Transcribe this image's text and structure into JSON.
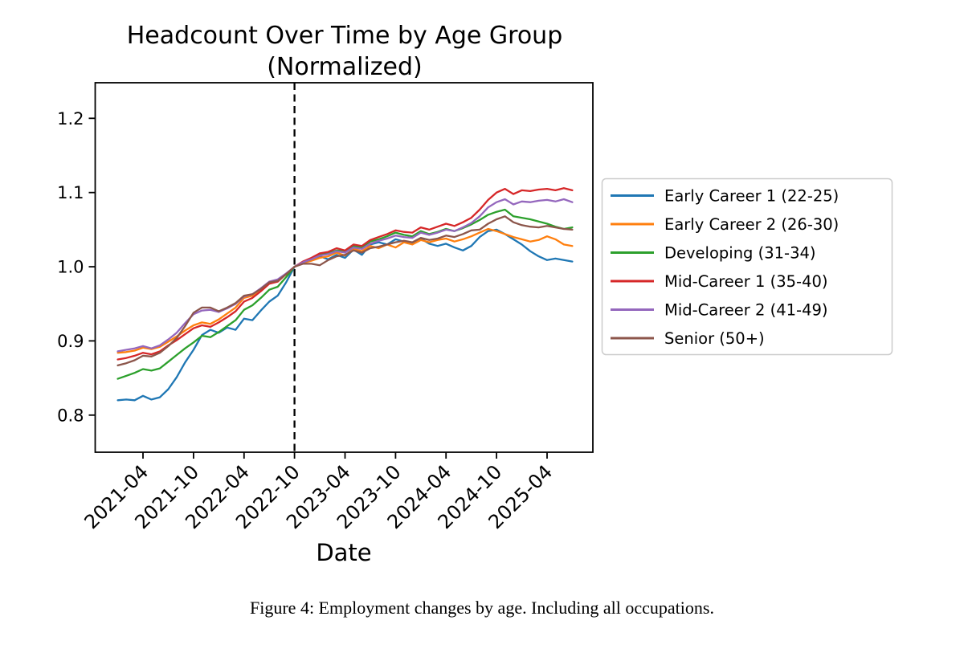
{
  "figure": {
    "title_line1": "Headcount Over Time by Age Group",
    "title_line2": "(Normalized)",
    "xlabel": "Date",
    "caption": "Figure 4: Employment changes by age. Including all occupations."
  },
  "colors": {
    "background": "#ffffff",
    "axis": "#000000",
    "vline": "#000000",
    "legend_border": "#cccccc"
  },
  "chart_data": {
    "type": "line",
    "title": "Headcount Over Time by Age Group (Normalized)",
    "xlabel": "Date",
    "ylabel": "",
    "grid": false,
    "legend_position": "right",
    "ylim": [
      0.75,
      1.248
    ],
    "yticks": [
      0.8,
      0.9,
      1.0,
      1.1,
      1.2
    ],
    "xtick_labels": [
      "2021-04",
      "2021-10",
      "2022-04",
      "2022-10",
      "2023-04",
      "2023-10",
      "2024-04",
      "2024-10",
      "2025-04"
    ],
    "vline": {
      "x": "2022-10",
      "style": "dashed",
      "color": "#000000"
    },
    "x": [
      "2021-01",
      "2021-02",
      "2021-03",
      "2021-04",
      "2021-05",
      "2021-06",
      "2021-07",
      "2021-08",
      "2021-09",
      "2021-10",
      "2021-11",
      "2021-12",
      "2022-01",
      "2022-02",
      "2022-03",
      "2022-04",
      "2022-05",
      "2022-06",
      "2022-07",
      "2022-08",
      "2022-09",
      "2022-10",
      "2022-11",
      "2022-12",
      "2023-01",
      "2023-02",
      "2023-03",
      "2023-04",
      "2023-05",
      "2023-06",
      "2023-07",
      "2023-08",
      "2023-09",
      "2023-10",
      "2023-11",
      "2023-12",
      "2024-01",
      "2024-02",
      "2024-03",
      "2024-04",
      "2024-05",
      "2024-06",
      "2024-07",
      "2024-08",
      "2024-09",
      "2024-10",
      "2024-11",
      "2024-12",
      "2025-01",
      "2025-02",
      "2025-03",
      "2025-04",
      "2025-05",
      "2025-06",
      "2025-07"
    ],
    "series": [
      {
        "name": "Early Career 1 (22-25)",
        "color": "#1f77b4",
        "values": [
          0.82,
          0.821,
          0.82,
          0.826,
          0.821,
          0.824,
          0.835,
          0.851,
          0.871,
          0.888,
          0.908,
          0.915,
          0.911,
          0.918,
          0.915,
          0.93,
          0.928,
          0.941,
          0.953,
          0.961,
          0.979,
          1.0,
          1.005,
          1.009,
          1.014,
          1.01,
          1.016,
          1.012,
          1.023,
          1.016,
          1.03,
          1.033,
          1.03,
          1.037,
          1.034,
          1.032,
          1.038,
          1.031,
          1.028,
          1.031,
          1.026,
          1.022,
          1.028,
          1.04,
          1.048,
          1.05,
          1.044,
          1.037,
          1.03,
          1.021,
          1.014,
          1.009,
          1.011,
          1.009,
          1.007
        ]
      },
      {
        "name": "Early Career 2 (26-30)",
        "color": "#ff7f0e",
        "values": [
          0.884,
          0.885,
          0.887,
          0.891,
          0.889,
          0.892,
          0.899,
          0.906,
          0.914,
          0.921,
          0.925,
          0.923,
          0.929,
          0.937,
          0.945,
          0.958,
          0.961,
          0.97,
          0.978,
          0.981,
          0.99,
          1.0,
          1.005,
          1.008,
          1.012,
          1.014,
          1.019,
          1.015,
          1.024,
          1.021,
          1.028,
          1.025,
          1.03,
          1.026,
          1.033,
          1.03,
          1.036,
          1.033,
          1.036,
          1.038,
          1.034,
          1.037,
          1.041,
          1.046,
          1.051,
          1.048,
          1.044,
          1.04,
          1.037,
          1.034,
          1.036,
          1.041,
          1.037,
          1.03,
          1.028
        ]
      },
      {
        "name": "Developing (31-34)",
        "color": "#2ca02c",
        "values": [
          0.849,
          0.853,
          0.857,
          0.862,
          0.86,
          0.863,
          0.872,
          0.881,
          0.89,
          0.898,
          0.907,
          0.905,
          0.912,
          0.92,
          0.928,
          0.942,
          0.948,
          0.958,
          0.969,
          0.973,
          0.986,
          1.0,
          1.006,
          1.01,
          1.016,
          1.018,
          1.022,
          1.021,
          1.028,
          1.026,
          1.034,
          1.037,
          1.041,
          1.046,
          1.043,
          1.041,
          1.048,
          1.044,
          1.047,
          1.051,
          1.048,
          1.052,
          1.057,
          1.063,
          1.07,
          1.074,
          1.077,
          1.068,
          1.066,
          1.064,
          1.061,
          1.058,
          1.054,
          1.051,
          1.053
        ]
      },
      {
        "name": "Mid-Career 1 (35-40)",
        "color": "#d62728",
        "values": [
          0.875,
          0.877,
          0.88,
          0.884,
          0.882,
          0.886,
          0.894,
          0.901,
          0.909,
          0.917,
          0.921,
          0.919,
          0.925,
          0.932,
          0.94,
          0.953,
          0.958,
          0.967,
          0.977,
          0.98,
          0.99,
          1.0,
          1.007,
          1.012,
          1.018,
          1.02,
          1.025,
          1.022,
          1.03,
          1.028,
          1.036,
          1.04,
          1.044,
          1.049,
          1.047,
          1.046,
          1.053,
          1.05,
          1.054,
          1.058,
          1.055,
          1.06,
          1.066,
          1.077,
          1.09,
          1.1,
          1.105,
          1.098,
          1.103,
          1.102,
          1.104,
          1.105,
          1.103,
          1.106,
          1.103
        ]
      },
      {
        "name": "Mid-Career 2 (41-49)",
        "color": "#9467bd",
        "values": [
          0.886,
          0.888,
          0.89,
          0.893,
          0.89,
          0.894,
          0.902,
          0.911,
          0.924,
          0.936,
          0.941,
          0.942,
          0.939,
          0.944,
          0.95,
          0.96,
          0.963,
          0.971,
          0.98,
          0.983,
          0.991,
          1.0,
          1.006,
          1.01,
          1.015,
          1.017,
          1.021,
          1.019,
          1.026,
          1.024,
          1.031,
          1.035,
          1.038,
          1.042,
          1.04,
          1.039,
          1.046,
          1.043,
          1.046,
          1.05,
          1.048,
          1.053,
          1.059,
          1.068,
          1.08,
          1.087,
          1.091,
          1.084,
          1.088,
          1.087,
          1.089,
          1.09,
          1.088,
          1.091,
          1.087
        ]
      },
      {
        "name": "Senior (50+)",
        "color": "#8c564b",
        "values": [
          0.867,
          0.87,
          0.874,
          0.88,
          0.879,
          0.884,
          0.893,
          0.904,
          0.92,
          0.938,
          0.945,
          0.945,
          0.94,
          0.945,
          0.951,
          0.961,
          0.963,
          0.97,
          0.979,
          0.981,
          0.99,
          1.0,
          1.004,
          1.004,
          1.002,
          1.009,
          1.014,
          1.016,
          1.022,
          1.019,
          1.025,
          1.027,
          1.03,
          1.033,
          1.035,
          1.033,
          1.039,
          1.036,
          1.038,
          1.042,
          1.04,
          1.044,
          1.049,
          1.05,
          1.058,
          1.064,
          1.068,
          1.06,
          1.056,
          1.054,
          1.053,
          1.055,
          1.053,
          1.051,
          1.05
        ]
      }
    ]
  }
}
